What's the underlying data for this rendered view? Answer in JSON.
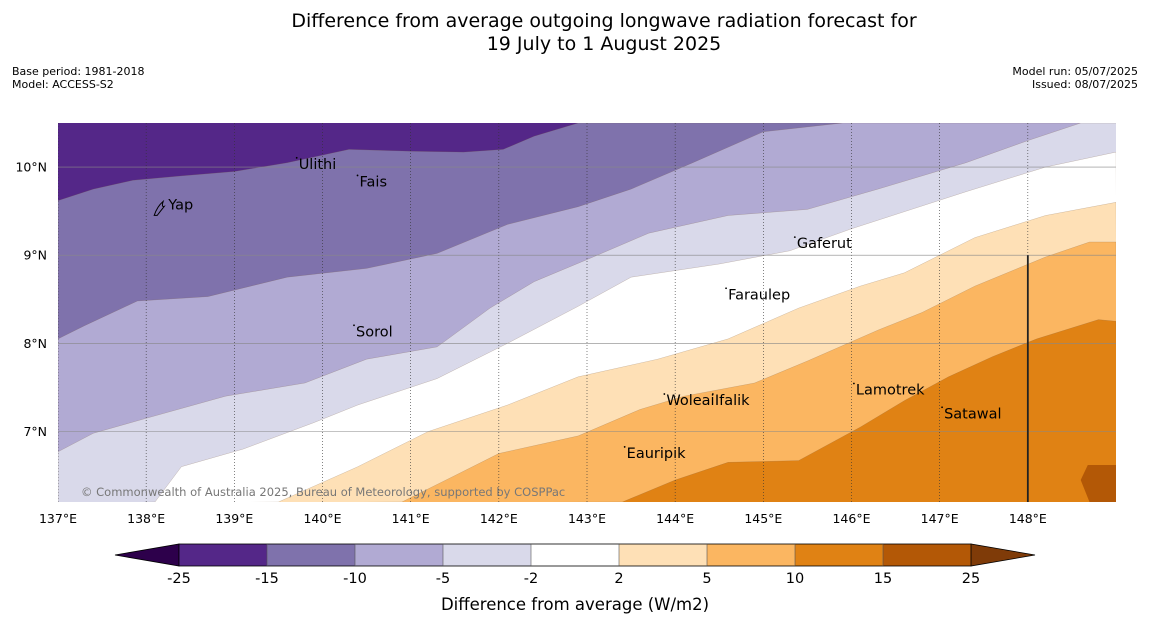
{
  "title": {
    "line1": "Difference from average outgoing longwave radiation forecast for",
    "line2": "19 July to 1 August 2025"
  },
  "meta_left": {
    "base_period": "Base period: 1981-2018",
    "model": "Model: ACCESS-S2"
  },
  "meta_right": {
    "model_run": "Model run: 05/07/2025",
    "issued": "Issued: 08/07/2025"
  },
  "copyright": "© Commonwealth of Australia 2025, Bureau of Meteorology, supported by COSPPac",
  "map": {
    "lon_range": [
      137,
      149
    ],
    "lat_range": [
      6.2,
      10.5
    ],
    "lon_ticks": [
      {
        "value": 137,
        "label": "137°E"
      },
      {
        "value": 138,
        "label": "138°E"
      },
      {
        "value": 139,
        "label": "139°E"
      },
      {
        "value": 140,
        "label": "140°E"
      },
      {
        "value": 141,
        "label": "141°E"
      },
      {
        "value": 142,
        "label": "142°E"
      },
      {
        "value": 143,
        "label": "143°E"
      },
      {
        "value": 144,
        "label": "144°E"
      },
      {
        "value": 145,
        "label": "145°E"
      },
      {
        "value": 146,
        "label": "146°E"
      },
      {
        "value": 147,
        "label": "147°E"
      },
      {
        "value": 148,
        "label": "148°E"
      }
    ],
    "lat_ticks": [
      {
        "value": 7,
        "label": "7°N"
      },
      {
        "value": 8,
        "label": "8°N"
      },
      {
        "value": 9,
        "label": "9°N"
      },
      {
        "value": 10,
        "label": "10°N"
      }
    ],
    "boundary_line": {
      "lon": 148,
      "lat_from": 6.2,
      "lat_to": 9.0
    },
    "places": [
      {
        "name": "Yap",
        "lon": 138.25,
        "lat": 9.52
      },
      {
        "name": "Ulithi",
        "lon": 139.73,
        "lat": 9.98
      },
      {
        "name": "Fais",
        "lon": 140.42,
        "lat": 9.78
      },
      {
        "name": "Gaferut",
        "lon": 145.38,
        "lat": 9.08
      },
      {
        "name": "Faraulep",
        "lon": 144.6,
        "lat": 8.5
      },
      {
        "name": "Sorol",
        "lon": 140.38,
        "lat": 8.08
      },
      {
        "name": "Lamotrek",
        "lon": 146.05,
        "lat": 7.42
      },
      {
        "name": "Woleai",
        "lon": 143.9,
        "lat": 7.3
      },
      {
        "name": "Ifalik",
        "lon": 144.45,
        "lat": 7.3
      },
      {
        "name": "Satawal",
        "lon": 147.05,
        "lat": 7.15
      },
      {
        "name": "Eauripik",
        "lon": 143.45,
        "lat": 6.7
      }
    ],
    "contours": [
      {
        "class": "-15 to -10",
        "color": "#7f72ac",
        "boundary": [
          [
            137,
            9.62
          ],
          [
            137.4,
            9.75
          ],
          [
            137.85,
            9.85
          ],
          [
            138.4,
            9.9
          ],
          [
            139.0,
            9.95
          ],
          [
            139.6,
            10.05
          ],
          [
            140.3,
            10.2
          ],
          [
            141.0,
            10.18
          ],
          [
            141.6,
            10.17
          ],
          [
            142.05,
            10.2
          ],
          [
            142.4,
            10.35
          ],
          [
            142.9,
            10.5
          ]
        ]
      },
      {
        "class": "-10 to -5",
        "color": "#b1aad3",
        "boundary": [
          [
            137,
            8.05
          ],
          [
            137.3,
            8.2
          ],
          [
            137.9,
            8.48
          ],
          [
            138.7,
            8.53
          ],
          [
            139.6,
            8.75
          ],
          [
            140.5,
            8.85
          ],
          [
            141.3,
            9.02
          ],
          [
            142.1,
            9.35
          ],
          [
            142.9,
            9.55
          ],
          [
            143.5,
            9.75
          ],
          [
            144.2,
            10.05
          ],
          [
            145.0,
            10.4
          ],
          [
            145.9,
            10.5
          ]
        ]
      },
      {
        "class": "-5 to -2",
        "color": "#d9d9ea",
        "boundary": [
          [
            137,
            6.77
          ],
          [
            137.4,
            6.98
          ],
          [
            138.0,
            7.15
          ],
          [
            138.9,
            7.4
          ],
          [
            139.8,
            7.55
          ],
          [
            140.5,
            7.82
          ],
          [
            141.3,
            7.96
          ],
          [
            141.9,
            8.4
          ],
          [
            142.4,
            8.7
          ],
          [
            143.0,
            8.95
          ],
          [
            143.7,
            9.25
          ],
          [
            144.6,
            9.45
          ],
          [
            145.5,
            9.52
          ],
          [
            146.3,
            9.75
          ],
          [
            147.3,
            10.05
          ],
          [
            148.0,
            10.3
          ],
          [
            148.6,
            10.5
          ]
        ]
      },
      {
        "class": "-2 to 2",
        "color": "#ffffff",
        "boundary": [
          [
            138.1,
            6.2
          ],
          [
            138.4,
            6.6
          ],
          [
            139.1,
            6.8
          ],
          [
            139.9,
            7.1
          ],
          [
            140.4,
            7.3
          ],
          [
            141.3,
            7.6
          ],
          [
            142.1,
            8.0
          ],
          [
            142.9,
            8.42
          ],
          [
            143.5,
            8.75
          ],
          [
            144.5,
            8.9
          ],
          [
            145.3,
            9.05
          ],
          [
            146.0,
            9.3
          ],
          [
            147.3,
            9.72
          ],
          [
            148.2,
            10.0
          ],
          [
            149.0,
            10.17
          ]
        ]
      },
      {
        "class": "2 to 5",
        "color": "#fee0b6",
        "boundary": [
          [
            139.5,
            6.2
          ],
          [
            140.4,
            6.6
          ],
          [
            141.2,
            7.0
          ],
          [
            142.1,
            7.3
          ],
          [
            142.9,
            7.62
          ],
          [
            143.8,
            7.82
          ],
          [
            144.6,
            8.05
          ],
          [
            145.4,
            8.4
          ],
          [
            146.1,
            8.65
          ],
          [
            146.6,
            8.8
          ],
          [
            147.4,
            9.2
          ],
          [
            148.2,
            9.45
          ],
          [
            149.0,
            9.6
          ]
        ]
      },
      {
        "class": "5 to 10",
        "color": "#fbb661",
        "boundary": [
          [
            140.9,
            6.2
          ],
          [
            141.5,
            6.5
          ],
          [
            142.0,
            6.75
          ],
          [
            142.9,
            6.95
          ],
          [
            143.6,
            7.25
          ],
          [
            144.1,
            7.4
          ],
          [
            144.9,
            7.55
          ],
          [
            145.5,
            7.8
          ],
          [
            146.3,
            8.15
          ],
          [
            146.8,
            8.35
          ],
          [
            147.4,
            8.65
          ],
          [
            148.2,
            8.98
          ],
          [
            148.7,
            9.15
          ],
          [
            149.0,
            9.15
          ]
        ]
      },
      {
        "class": "10 to 15",
        "color": "#e08214",
        "boundary": [
          [
            143.4,
            6.2
          ],
          [
            144.0,
            6.45
          ],
          [
            144.6,
            6.65
          ],
          [
            145.4,
            6.67
          ],
          [
            146.1,
            7.05
          ],
          [
            146.6,
            7.35
          ],
          [
            147.1,
            7.62
          ],
          [
            147.6,
            7.85
          ],
          [
            148.1,
            8.05
          ],
          [
            148.8,
            8.27
          ],
          [
            149.0,
            8.25
          ]
        ]
      }
    ],
    "extreme_patch": {
      "class": "15 to 25",
      "color": "#b35806",
      "boundary": [
        [
          149.0,
          6.62
        ],
        [
          148.68,
          6.62
        ],
        [
          148.6,
          6.45
        ],
        [
          148.7,
          6.2
        ],
        [
          149.0,
          6.2
        ]
      ]
    }
  },
  "colorbar": {
    "label": "Difference from average (W/m2)",
    "tick_labels": [
      "-25",
      "-15",
      "-10",
      "-5",
      "-2",
      "2",
      "5",
      "10",
      "15",
      "25"
    ],
    "colors": [
      "#542788",
      "#7f72ac",
      "#b1aad3",
      "#d9d9ea",
      "#ffffff",
      "#fee0b6",
      "#fbb661",
      "#e08214",
      "#b35806"
    ],
    "under_color": "#2d004b",
    "over_color": "#7f3b08"
  }
}
